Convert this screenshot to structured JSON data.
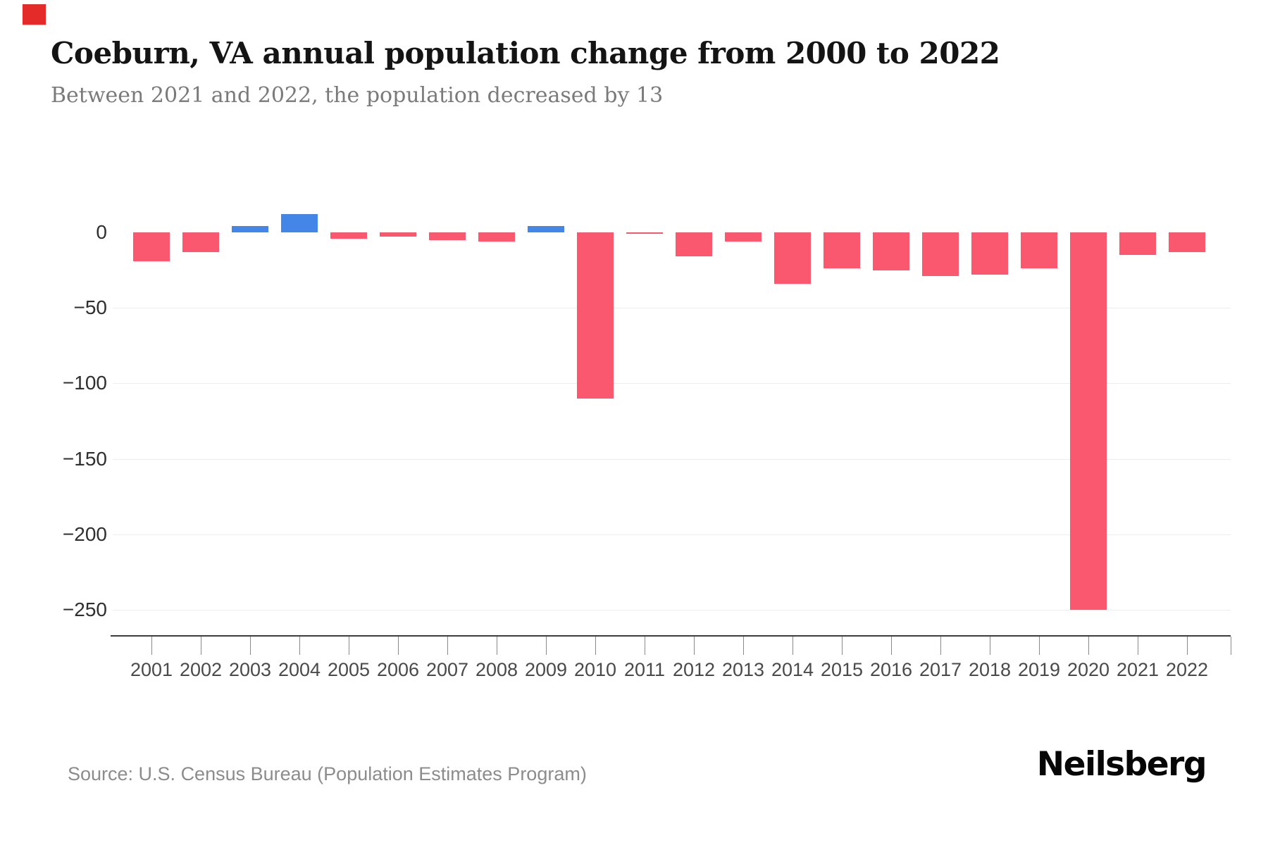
{
  "brand": {
    "mark_color": "#e52a2a",
    "logo": "Neilsberg"
  },
  "header": {
    "title": "Coeburn, VA annual population change from 2000 to 2022",
    "subtitle": "Between 2021 and 2022, the population decreased by 13"
  },
  "footer": {
    "source": "Source: U.S. Census Bureau (Population Estimates Program)"
  },
  "chart_data": {
    "type": "bar",
    "title": "Coeburn, VA annual population change from 2000 to 2022",
    "categories": [
      "2001",
      "2002",
      "2003",
      "2004",
      "2005",
      "2006",
      "2007",
      "2008",
      "2009",
      "2010",
      "2011",
      "2012",
      "2013",
      "2014",
      "2015",
      "2016",
      "2017",
      "2018",
      "2019",
      "2020",
      "2021",
      "2022"
    ],
    "values": [
      -19,
      -13,
      4,
      12,
      -4,
      -3,
      -5,
      -6,
      4,
      -110,
      -1,
      -16,
      -6,
      -34,
      -24,
      -25,
      -29,
      -28,
      -24,
      -250,
      -15,
      -13
    ],
    "yticks": [
      0,
      -50,
      -100,
      -150,
      -200,
      -250
    ],
    "ytick_labels": [
      "0",
      "−50",
      "−100",
      "−150",
      "−200",
      "−250"
    ],
    "ylim": [
      -260,
      20
    ],
    "xlabel": "",
    "ylabel": "",
    "grid": true,
    "legend": "none",
    "positive_color": "#4486e8",
    "negative_color": "#f9586e"
  }
}
